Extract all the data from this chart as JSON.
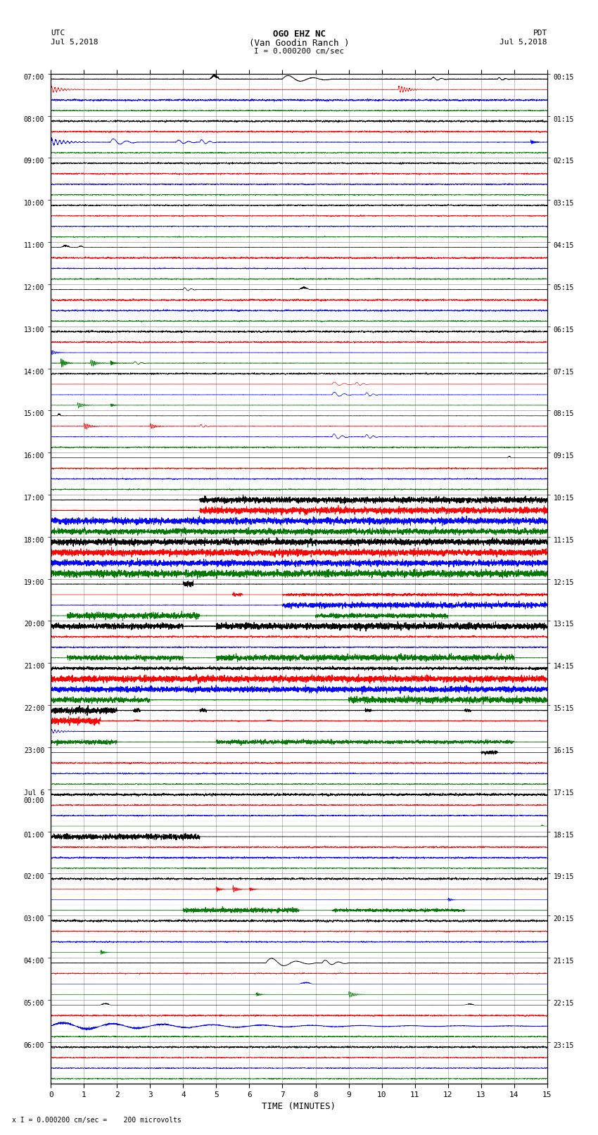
{
  "title_line1": "OGO EHZ NC",
  "title_line2": "(Van Goodin Ranch )",
  "title_line3": "I = 0.000200 cm/sec",
  "utc_label": "UTC",
  "utc_date": "Jul 5,2018",
  "pdt_label": "PDT",
  "pdt_date": "Jul 5,2018",
  "xlabel": "TIME (MINUTES)",
  "footer": "x I = 0.000200 cm/sec =    200 microvolts",
  "xlim": [
    0,
    15
  ],
  "xticks": [
    0,
    1,
    2,
    3,
    4,
    5,
    6,
    7,
    8,
    9,
    10,
    11,
    12,
    13,
    14,
    15
  ],
  "left_times": [
    "07:00",
    "08:00",
    "09:00",
    "10:00",
    "11:00",
    "12:00",
    "13:00",
    "14:00",
    "15:00",
    "16:00",
    "17:00",
    "18:00",
    "19:00",
    "20:00",
    "21:00",
    "22:00",
    "23:00",
    "Jul 6\n00:00",
    "01:00",
    "02:00",
    "03:00",
    "04:00",
    "05:00",
    "06:00"
  ],
  "right_times": [
    "00:15",
    "01:15",
    "02:15",
    "03:15",
    "04:15",
    "05:15",
    "06:15",
    "07:15",
    "08:15",
    "09:15",
    "10:15",
    "11:15",
    "12:15",
    "13:15",
    "14:15",
    "15:15",
    "16:15",
    "17:15",
    "18:15",
    "19:15",
    "20:15",
    "21:15",
    "22:15",
    "23:15"
  ],
  "n_rows": 24,
  "sub_rows": 4,
  "bg_color": "#ffffff",
  "grid_color": "#aaaaaa",
  "BLACK": "#000000",
  "RED": "#ff0000",
  "BLUE": "#0000ff",
  "GREEN": "#007700"
}
